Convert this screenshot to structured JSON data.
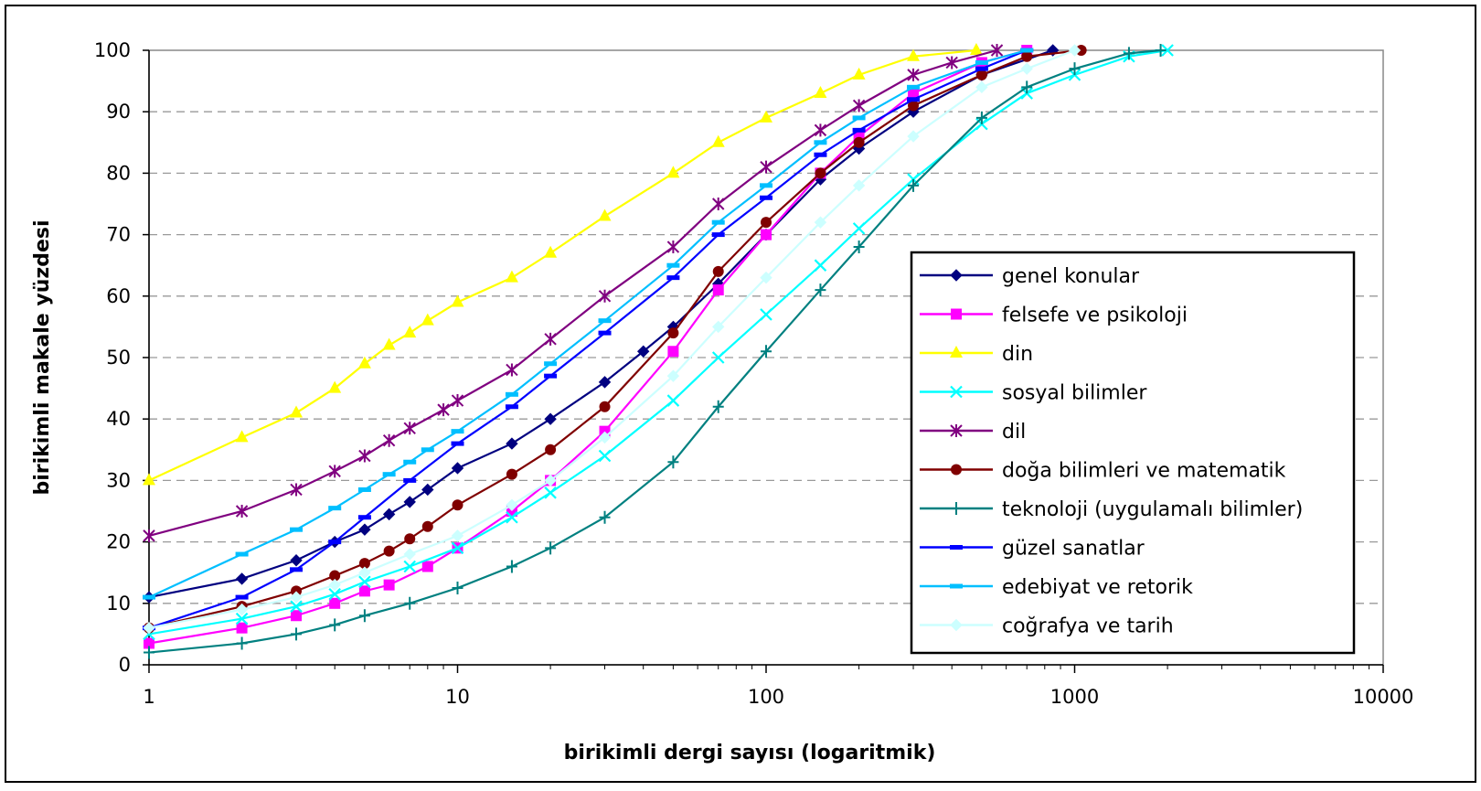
{
  "chart_data": {
    "type": "line",
    "title": "",
    "xlabel": "birikimli dergi sayısı (logaritmik)",
    "ylabel": "birikimli makale yüzdesi",
    "xscale": "log",
    "xlim": [
      1,
      10000
    ],
    "ylim": [
      0,
      100
    ],
    "xticks": [
      "1",
      "10",
      "100",
      "1000",
      "10000"
    ],
    "yticks": [
      "0",
      "10",
      "20",
      "30",
      "40",
      "50",
      "60",
      "70",
      "80",
      "90",
      "100"
    ],
    "grid": "horizontal dashed",
    "legend_position": "right-bottom inside",
    "series": [
      {
        "name": "genel konular",
        "color": "#000080",
        "marker": "diamond",
        "x": [
          1,
          2,
          3,
          4,
          5,
          6,
          7,
          8,
          10,
          15,
          20,
          30,
          40,
          50,
          70,
          100,
          150,
          200,
          300,
          500,
          850
        ],
        "y": [
          11,
          14,
          17,
          20,
          22,
          24.5,
          26.5,
          28.5,
          32,
          36,
          40,
          46,
          51,
          55,
          62,
          70,
          79,
          84,
          90,
          96,
          100
        ]
      },
      {
        "name": "felsefe ve psikoloji",
        "color": "#FF00FF",
        "marker": "square",
        "x": [
          1,
          2,
          3,
          4,
          5,
          6,
          8,
          10,
          15,
          20,
          30,
          50,
          70,
          100,
          150,
          200,
          300,
          500,
          700
        ],
        "y": [
          3.5,
          6,
          8,
          10,
          12,
          13,
          16,
          19,
          25,
          30,
          38,
          51,
          61,
          70,
          80,
          86,
          93,
          98,
          100
        ]
      },
      {
        "name": "din",
        "color": "#FFFF00",
        "marker": "triangle",
        "x": [
          1,
          2,
          3,
          4,
          5,
          6,
          7,
          8,
          10,
          15,
          20,
          30,
          50,
          70,
          100,
          150,
          200,
          300,
          480
        ],
        "y": [
          30,
          37,
          41,
          45,
          49,
          52,
          54,
          56,
          59,
          63,
          67,
          73,
          80,
          85,
          89,
          93,
          96,
          99,
          100
        ]
      },
      {
        "name": "sosyal bilimler",
        "color": "#00FFFF",
        "marker": "x",
        "x": [
          1,
          2,
          3,
          4,
          5,
          7,
          10,
          15,
          20,
          30,
          50,
          70,
          100,
          150,
          200,
          300,
          500,
          700,
          1000,
          1500,
          2000
        ],
        "y": [
          5,
          7.5,
          9.5,
          11.5,
          13.5,
          16,
          19,
          24,
          28,
          34,
          43,
          50,
          57,
          65,
          71,
          79,
          88,
          93,
          96,
          99,
          100
        ]
      },
      {
        "name": "dil",
        "color": "#800080",
        "marker": "star",
        "x": [
          1,
          2,
          3,
          4,
          5,
          6,
          7,
          9,
          10,
          15,
          20,
          30,
          50,
          70,
          100,
          150,
          200,
          300,
          400,
          560
        ],
        "y": [
          21,
          25,
          28.5,
          31.5,
          34,
          36.5,
          38.5,
          41.5,
          43,
          48,
          53,
          60,
          68,
          75,
          81,
          87,
          91,
          96,
          98,
          100
        ]
      },
      {
        "name": "doğa bilimleri ve matematik",
        "color": "#800000",
        "marker": "circle",
        "x": [
          1,
          2,
          3,
          4,
          5,
          6,
          7,
          8,
          10,
          15,
          20,
          30,
          50,
          70,
          100,
          150,
          200,
          300,
          500,
          700,
          1050
        ],
        "y": [
          6,
          9.5,
          12,
          14.5,
          16.5,
          18.5,
          20.5,
          22.5,
          26,
          31,
          35,
          42,
          54,
          64,
          72,
          80,
          85,
          91,
          96,
          99,
          100
        ]
      },
      {
        "name": "teknoloji (uygulamalı bilimler)",
        "color": "#008080",
        "marker": "plus",
        "x": [
          1,
          2,
          3,
          4,
          5,
          7,
          10,
          15,
          20,
          30,
          50,
          70,
          100,
          150,
          200,
          300,
          500,
          700,
          1000,
          1500,
          1900
        ],
        "y": [
          2,
          3.5,
          5,
          6.5,
          8,
          10,
          12.5,
          16,
          19,
          24,
          33,
          42,
          51,
          61,
          68,
          78,
          89,
          94,
          97,
          99.5,
          100
        ]
      },
      {
        "name": "güzel sanatlar",
        "color": "#0000FF",
        "marker": "dash",
        "x": [
          1,
          2,
          3,
          4,
          5,
          7,
          10,
          15,
          20,
          30,
          50,
          70,
          100,
          150,
          200,
          300,
          500,
          700
        ],
        "y": [
          6,
          11,
          15.5,
          20,
          24,
          30,
          36,
          42,
          47,
          54,
          63,
          70,
          76,
          83,
          87,
          92,
          97,
          100
        ]
      },
      {
        "name": "edebiyat ve retorik",
        "color": "#00BFFF",
        "marker": "dash",
        "x": [
          1,
          2,
          3,
          4,
          5,
          6,
          7,
          8,
          10,
          15,
          20,
          30,
          50,
          70,
          100,
          150,
          200,
          300,
          500,
          700
        ],
        "y": [
          11,
          18,
          22,
          25.5,
          28.5,
          31,
          33,
          35,
          38,
          44,
          49,
          56,
          65,
          72,
          78,
          85,
          89,
          94,
          98,
          100
        ]
      },
      {
        "name": "coğrafya ve tarih",
        "color": "#CCFFFF",
        "marker": "diamond",
        "x": [
          1,
          2,
          3,
          4,
          5,
          7,
          10,
          15,
          20,
          30,
          50,
          70,
          100,
          150,
          200,
          300,
          500,
          700,
          1000
        ],
        "y": [
          6,
          9,
          11,
          13,
          15,
          18,
          21,
          26,
          30,
          37,
          47,
          55,
          63,
          72,
          78,
          86,
          94,
          97,
          100
        ]
      }
    ]
  }
}
